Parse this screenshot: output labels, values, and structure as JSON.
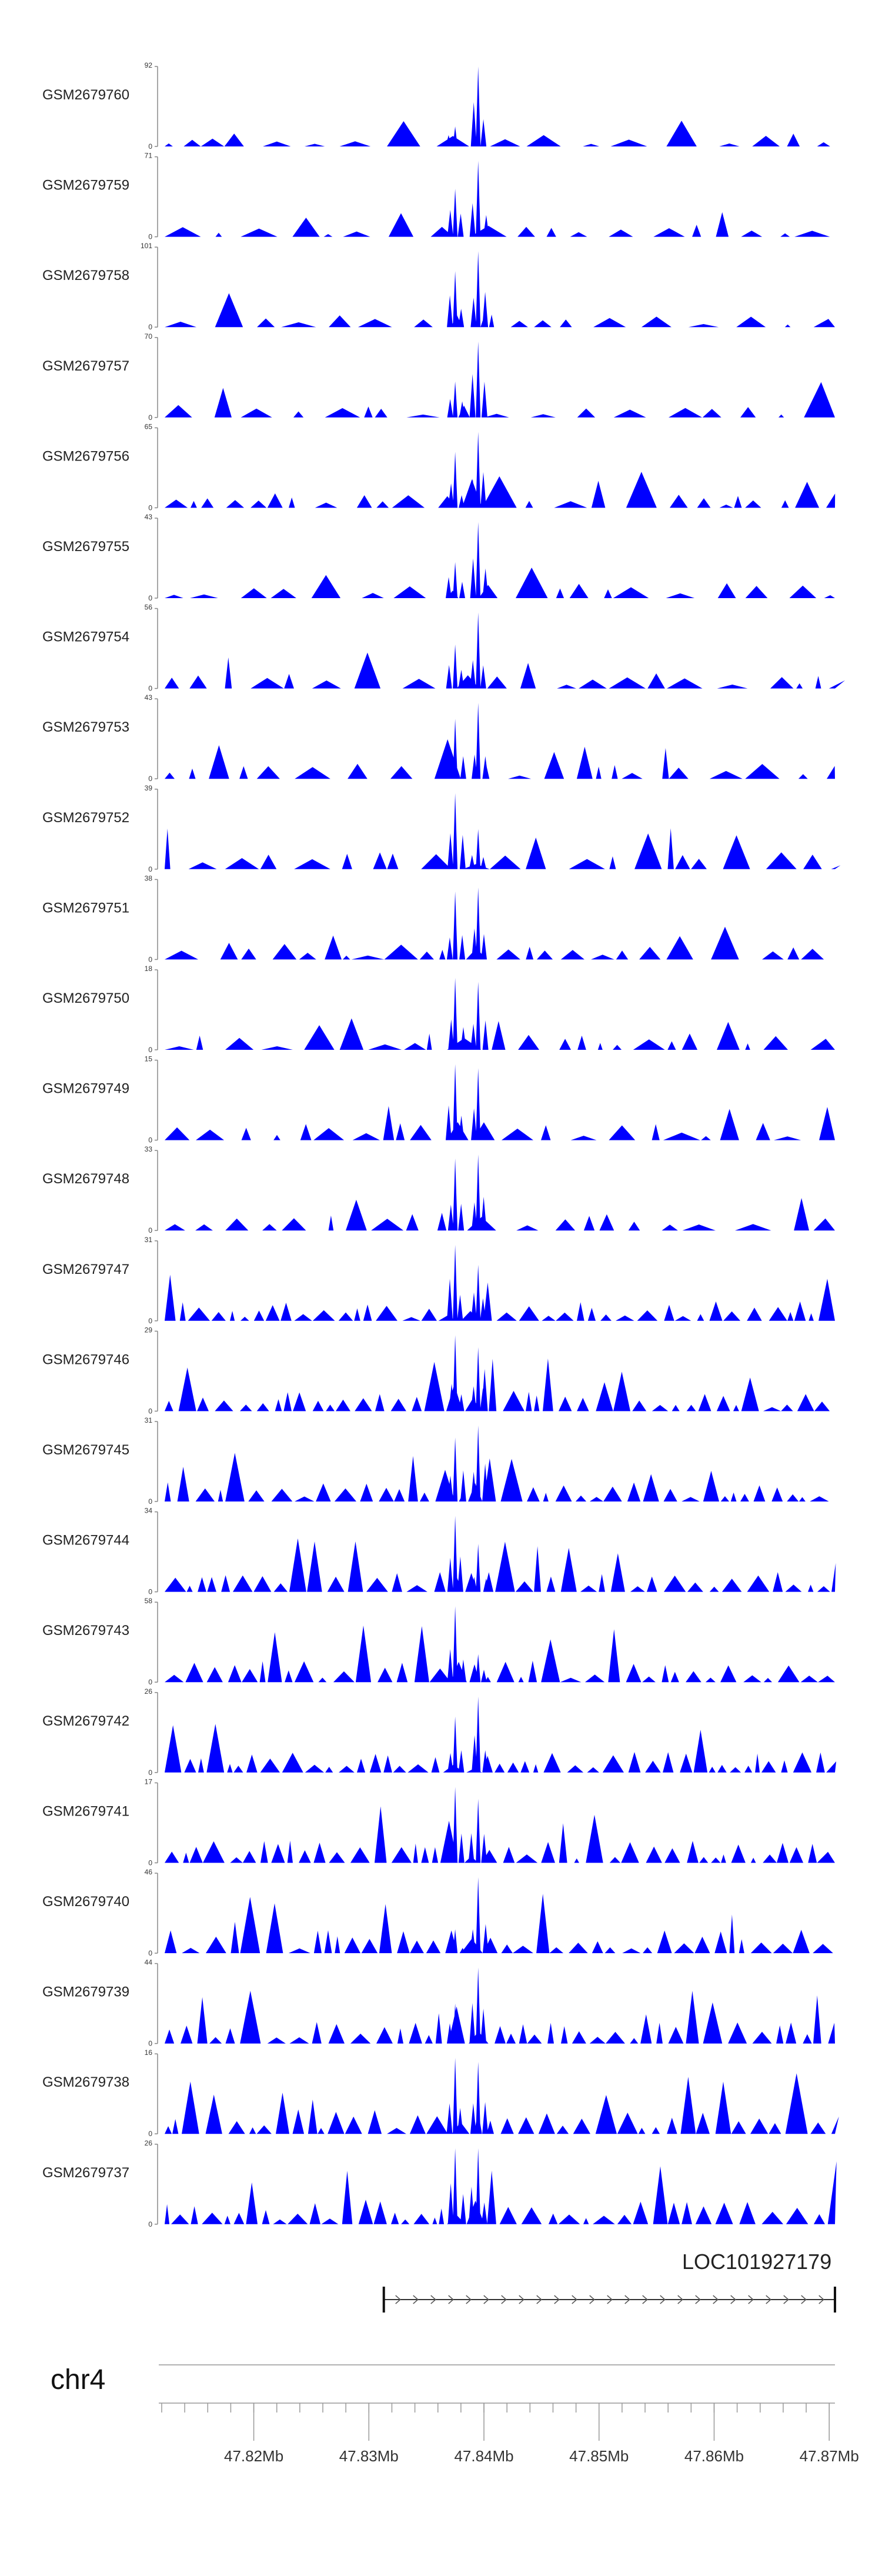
{
  "chart_data": {
    "type": "area",
    "title": "",
    "color": "#0000ff",
    "axis_color": "#888888",
    "x_range_mb": [
      47.812,
      47.8705
    ],
    "peak_positions_mb": [
      47.8375,
      47.8395
    ],
    "tracks": [
      {
        "name": "GSM2679760",
        "ymin": "0",
        "ymax": "92",
        "peak_scale": [
          0.25,
          1.0
        ]
      },
      {
        "name": "GSM2679759",
        "ymin": "0",
        "ymax": "71",
        "peak_scale": [
          0.6,
          0.95
        ]
      },
      {
        "name": "GSM2679758",
        "ymin": "0",
        "ymax": "101",
        "peak_scale": [
          0.7,
          0.95
        ]
      },
      {
        "name": "GSM2679757",
        "ymin": "0",
        "ymax": "70",
        "peak_scale": [
          0.45,
          0.95
        ]
      },
      {
        "name": "GSM2679756",
        "ymin": "0",
        "ymax": "65",
        "peak_scale": [
          0.7,
          0.95
        ]
      },
      {
        "name": "GSM2679755",
        "ymin": "0",
        "ymax": "43",
        "peak_scale": [
          0.45,
          0.95
        ]
      },
      {
        "name": "GSM2679754",
        "ymin": "0",
        "ymax": "56",
        "peak_scale": [
          0.55,
          0.95
        ]
      },
      {
        "name": "GSM2679753",
        "ymin": "0",
        "ymax": "43",
        "peak_scale": [
          0.75,
          0.95
        ]
      },
      {
        "name": "GSM2679752",
        "ymin": "0",
        "ymax": "39",
        "peak_scale": [
          0.95,
          0.5
        ]
      },
      {
        "name": "GSM2679751",
        "ymin": "0",
        "ymax": "38",
        "peak_scale": [
          0.85,
          0.9
        ]
      },
      {
        "name": "GSM2679750",
        "ymin": "0",
        "ymax": "18",
        "peak_scale": [
          0.9,
          0.85
        ]
      },
      {
        "name": "GSM2679749",
        "ymin": "0",
        "ymax": "15",
        "peak_scale": [
          0.95,
          0.9
        ]
      },
      {
        "name": "GSM2679748",
        "ymin": "0",
        "ymax": "33",
        "peak_scale": [
          0.9,
          0.95
        ]
      },
      {
        "name": "GSM2679747",
        "ymin": "0",
        "ymax": "31",
        "peak_scale": [
          0.95,
          0.7
        ]
      },
      {
        "name": "GSM2679746",
        "ymin": "0",
        "ymax": "29",
        "peak_scale": [
          0.95,
          0.8
        ]
      },
      {
        "name": "GSM2679745",
        "ymin": "0",
        "ymax": "31",
        "peak_scale": [
          0.8,
          0.95
        ]
      },
      {
        "name": "GSM2679744",
        "ymin": "0",
        "ymax": "34",
        "peak_scale": [
          0.95,
          0.6
        ]
      },
      {
        "name": "GSM2679743",
        "ymin": "0",
        "ymax": "58",
        "peak_scale": [
          0.95,
          0.35
        ]
      },
      {
        "name": "GSM2679742",
        "ymin": "0",
        "ymax": "26",
        "peak_scale": [
          0.7,
          0.95
        ]
      },
      {
        "name": "GSM2679741",
        "ymin": "0",
        "ymax": "17",
        "peak_scale": [
          0.95,
          0.8
        ]
      },
      {
        "name": "GSM2679740",
        "ymin": "0",
        "ymax": "46",
        "peak_scale": [
          0.3,
          0.95
        ]
      },
      {
        "name": "GSM2679739",
        "ymin": "0",
        "ymax": "44",
        "peak_scale": [
          0.5,
          0.95
        ]
      },
      {
        "name": "GSM2679738",
        "ymin": "0",
        "ymax": "16",
        "peak_scale": [
          0.95,
          0.9
        ]
      },
      {
        "name": "GSM2679737",
        "ymin": "0",
        "ymax": "26",
        "peak_scale": [
          0.95,
          0.95
        ]
      }
    ],
    "gene": {
      "name": "LOC101927179",
      "start_mb": 47.8313,
      "end_mb": 47.8705,
      "strand": "+"
    },
    "chromosome": "chr4",
    "x_ticks_mb": [
      47.82,
      47.83,
      47.84,
      47.85,
      47.86,
      47.87
    ],
    "x_tick_labels": [
      "47.82Mb",
      "47.83Mb",
      "47.84Mb",
      "47.85Mb",
      "47.86Mb",
      "47.87Mb"
    ]
  }
}
